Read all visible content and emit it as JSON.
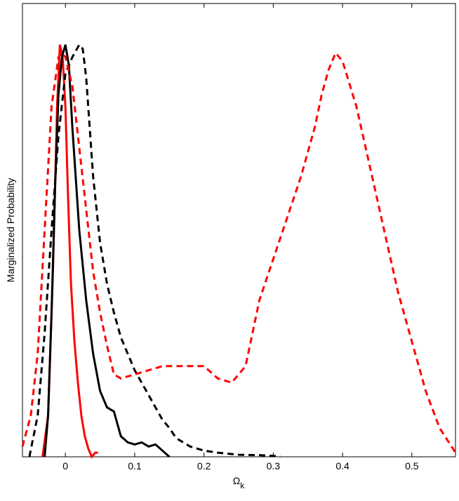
{
  "chart_data": {
    "type": "line",
    "x_label": {
      "main": "Ω",
      "sub": "k"
    },
    "y_label": "Marginalized Probability",
    "xlim": [
      -0.062,
      0.563
    ],
    "ylim": [
      0,
      1.1
    ],
    "xticks": [
      0,
      0.1,
      0.2,
      0.3,
      0.4,
      0.5
    ],
    "series": [
      {
        "color": "#ff0000",
        "linestyle": "solid",
        "x": [
          -0.033,
          -0.025,
          -0.018,
          -0.012,
          -0.008,
          -0.004,
          0.0,
          0.004,
          0.008,
          0.013,
          0.018,
          0.023,
          0.028,
          0.033,
          0.038,
          0.043,
          0.047
        ],
        "values": [
          0,
          0.1,
          0.45,
          0.85,
          1.0,
          0.97,
          0.85,
          0.62,
          0.42,
          0.28,
          0.18,
          0.1,
          0.05,
          0.02,
          0.0,
          0.01,
          0.01
        ]
      },
      {
        "color": "#000000",
        "linestyle": "solid",
        "x": [
          -0.03,
          -0.025,
          -0.02,
          -0.015,
          -0.01,
          -0.005,
          0.0,
          0.005,
          0.01,
          0.02,
          0.03,
          0.04,
          0.05,
          0.06,
          0.07,
          0.08,
          0.09,
          0.1,
          0.11,
          0.12,
          0.13,
          0.14,
          0.15
        ],
        "values": [
          0,
          0.1,
          0.35,
          0.65,
          0.88,
          0.97,
          1.0,
          0.95,
          0.8,
          0.55,
          0.38,
          0.25,
          0.16,
          0.12,
          0.11,
          0.05,
          0.035,
          0.03,
          0.035,
          0.025,
          0.03,
          0.015,
          0
        ]
      },
      {
        "color": "#000000",
        "linestyle": "dashed",
        "x": [
          -0.052,
          -0.04,
          -0.03,
          -0.02,
          -0.01,
          0.0,
          0.01,
          0.02,
          0.025,
          0.03,
          0.035,
          0.04,
          0.05,
          0.06,
          0.07,
          0.08,
          0.1,
          0.12,
          0.14,
          0.15,
          0.16,
          0.18,
          0.2,
          0.22,
          0.25,
          0.28,
          0.31
        ],
        "values": [
          0,
          0.1,
          0.3,
          0.55,
          0.78,
          0.93,
          0.97,
          1.0,
          0.99,
          0.92,
          0.8,
          0.68,
          0.52,
          0.42,
          0.35,
          0.29,
          0.21,
          0.15,
          0.09,
          0.07,
          0.045,
          0.025,
          0.015,
          0.01,
          0.005,
          0.004,
          0.001
        ]
      },
      {
        "color": "#ff0000",
        "linestyle": "dashed",
        "x": [
          -0.062,
          -0.05,
          -0.04,
          -0.03,
          -0.02,
          -0.01,
          -0.005,
          0.0,
          0.01,
          0.02,
          0.03,
          0.04,
          0.05,
          0.06,
          0.07,
          0.08,
          0.1,
          0.12,
          0.14,
          0.16,
          0.18,
          0.2,
          0.22,
          0.24,
          0.26,
          0.28,
          0.3,
          0.32,
          0.34,
          0.36,
          0.37,
          0.38,
          0.39,
          0.4,
          0.42,
          0.44,
          0.46,
          0.48,
          0.5,
          0.52,
          0.54,
          0.563
        ],
        "values": [
          0.025,
          0.1,
          0.25,
          0.55,
          0.85,
          0.97,
          0.98,
          0.97,
          0.9,
          0.75,
          0.6,
          0.45,
          0.35,
          0.27,
          0.2,
          0.19,
          0.2,
          0.21,
          0.22,
          0.22,
          0.22,
          0.22,
          0.19,
          0.18,
          0.22,
          0.38,
          0.48,
          0.58,
          0.68,
          0.8,
          0.88,
          0.94,
          0.98,
          0.96,
          0.85,
          0.7,
          0.55,
          0.4,
          0.28,
          0.16,
          0.07,
          0.01
        ]
      }
    ]
  }
}
